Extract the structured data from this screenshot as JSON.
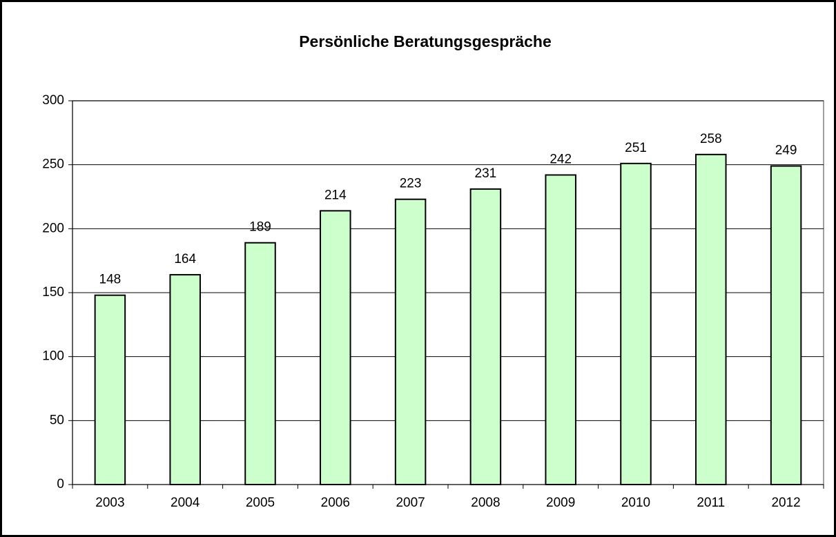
{
  "chart_data": {
    "type": "bar",
    "title": "Persönliche Beratungsgespräche",
    "categories": [
      "2003",
      "2004",
      "2005",
      "2006",
      "2007",
      "2008",
      "2009",
      "2010",
      "2011",
      "2012"
    ],
    "values": [
      148,
      164,
      189,
      214,
      223,
      231,
      242,
      251,
      258,
      249
    ],
    "color": "#ccffcc",
    "ylim": [
      0,
      300
    ],
    "yticks": [
      0,
      50,
      100,
      150,
      200,
      250,
      300
    ],
    "grid": true
  }
}
